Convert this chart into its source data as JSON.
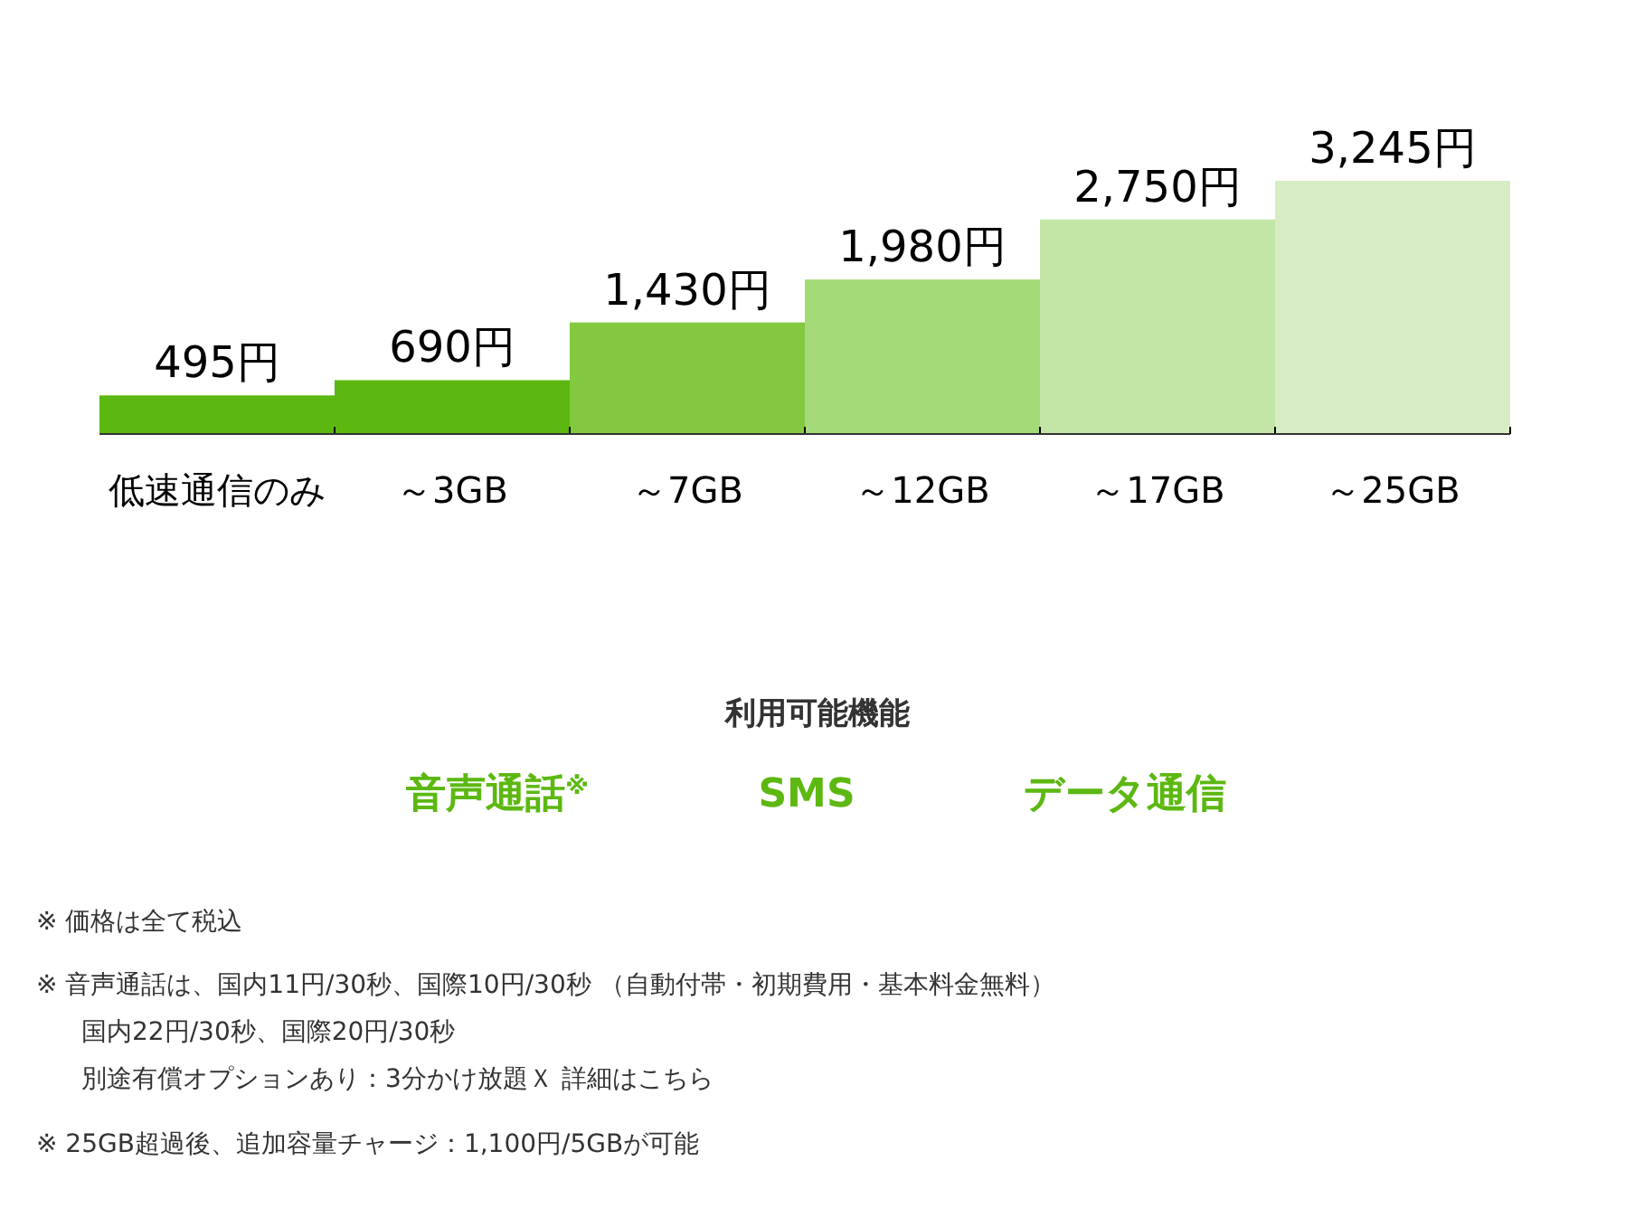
{
  "chart_data": {
    "type": "bar",
    "categories": [
      "低速通信のみ",
      "～3GB",
      "～7GB",
      "～12GB",
      "～17GB",
      "～25GB"
    ],
    "values": [
      495,
      690,
      1430,
      1980,
      2750,
      3245
    ],
    "value_labels": [
      "495円",
      "690円",
      "1,430円",
      "1,980円",
      "2,750円",
      "3,245円"
    ],
    "colors": [
      "#5cb811",
      "#5cb811",
      "#82c940",
      "#a3d977",
      "#c3e6a7",
      "#d6edc4"
    ],
    "annotations": [
      "利用可能機能",
      "音声通話$^{※}$",
      "SMS",
      "データ通信",
      "※  価格は全て税込",
      "※  音声通話は、国内11円/30秒、国際10円/30秒 （自動付帯・初期費用・基本料金無料）",
      "国内22円/30秒、国際20円/30秒",
      "別途有償オプションあり：3分かけ放題Ｘ 詳細はこちら",
      "※  25GB超過後、追加容量チャージ：1,100円/5GBが可能"
    ]
  }
}
